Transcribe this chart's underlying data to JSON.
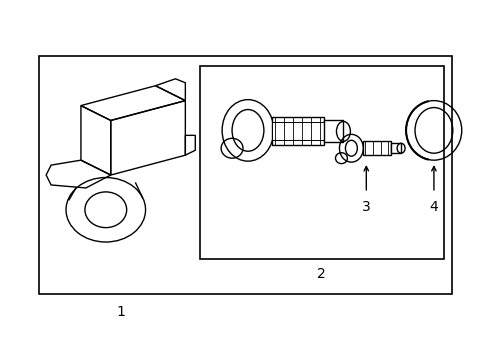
{
  "bg_color": "#ffffff",
  "line_color": "#000000",
  "label1": "1",
  "label2": "2",
  "label3": "3",
  "label4": "4",
  "label_fontsize": 10
}
